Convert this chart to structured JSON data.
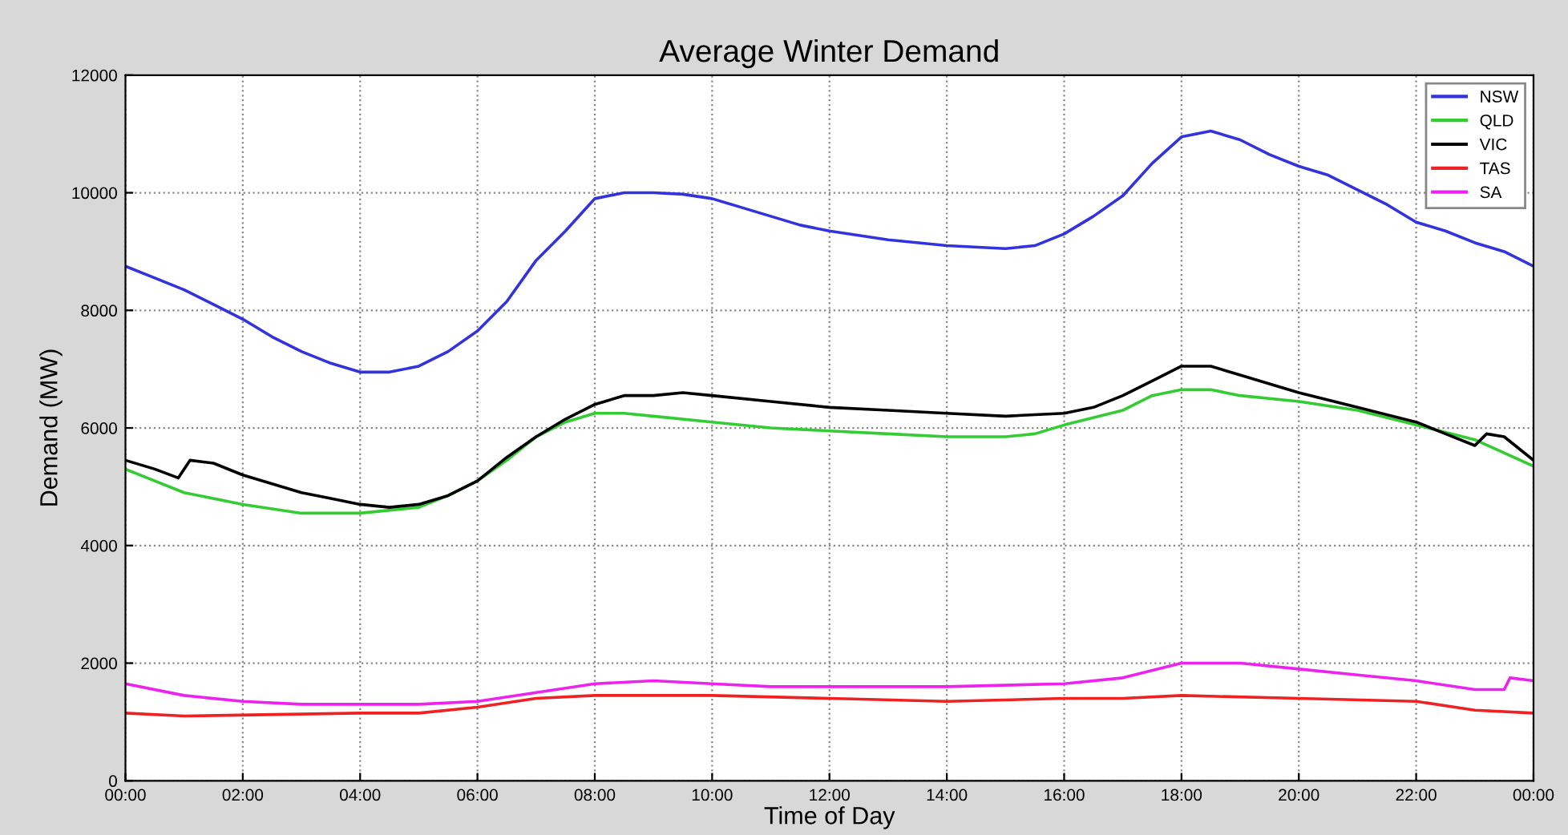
{
  "chart_data": {
    "type": "line",
    "title": "Average Winter Demand",
    "xlabel": "Time of Day",
    "ylabel": "Demand (MW)",
    "xlim": [
      0,
      24
    ],
    "ylim": [
      0,
      12000
    ],
    "xticks": [
      {
        "value": 0,
        "label": "00:00"
      },
      {
        "value": 2,
        "label": "02:00"
      },
      {
        "value": 4,
        "label": "04:00"
      },
      {
        "value": 6,
        "label": "06:00"
      },
      {
        "value": 8,
        "label": "08:00"
      },
      {
        "value": 10,
        "label": "10:00"
      },
      {
        "value": 12,
        "label": "12:00"
      },
      {
        "value": 14,
        "label": "14:00"
      },
      {
        "value": 16,
        "label": "16:00"
      },
      {
        "value": 18,
        "label": "18:00"
      },
      {
        "value": 20,
        "label": "20:00"
      },
      {
        "value": 22,
        "label": "22:00"
      },
      {
        "value": 24,
        "label": "00:00"
      }
    ],
    "yticks": [
      0,
      2000,
      4000,
      6000,
      8000,
      10000,
      12000
    ],
    "grid": true,
    "legend": "top right",
    "marker": "none",
    "line_style": "solid",
    "series": [
      {
        "name": "NSW",
        "color": "#3333dd",
        "x": [
          0,
          0.5,
          1,
          1.5,
          2,
          2.5,
          3,
          3.5,
          4,
          4.5,
          5,
          5.5,
          6,
          6.5,
          7,
          7.5,
          8,
          8.5,
          9,
          9.5,
          10,
          10.5,
          11,
          11.5,
          12,
          13,
          14,
          15,
          15.5,
          16,
          16.5,
          17,
          17.5,
          18,
          18.5,
          19,
          19.5,
          20,
          20.5,
          21,
          21.5,
          22,
          22.5,
          23,
          23.5,
          24
        ],
        "values": [
          8750,
          8550,
          8350,
          8100,
          7850,
          7550,
          7300,
          7100,
          6950,
          6950,
          7050,
          7300,
          7650,
          8150,
          8850,
          9350,
          9900,
          10000,
          10000,
          9975,
          9900,
          9750,
          9600,
          9450,
          9350,
          9200,
          9100,
          9050,
          9100,
          9300,
          9600,
          9950,
          10500,
          10950,
          11050,
          10900,
          10650,
          10450,
          10300,
          10050,
          9800,
          9500,
          9350,
          9150,
          9000,
          8750
        ]
      },
      {
        "name": "QLD",
        "color": "#33cc33",
        "x": [
          0,
          0.5,
          1,
          2,
          3,
          4,
          5,
          5.5,
          6,
          6.5,
          7,
          7.5,
          8,
          8.5,
          9,
          10,
          11,
          12,
          13,
          14,
          15,
          15.5,
          16,
          17,
          17.5,
          18,
          18.5,
          19,
          20,
          21,
          22,
          23,
          24
        ],
        "values": [
          5300,
          5100,
          4900,
          4700,
          4550,
          4550,
          4650,
          4850,
          5100,
          5450,
          5850,
          6100,
          6250,
          6250,
          6200,
          6100,
          6000,
          5950,
          5900,
          5850,
          5850,
          5900,
          6050,
          6300,
          6550,
          6650,
          6650,
          6550,
          6450,
          6300,
          6050,
          5800,
          5350
        ]
      },
      {
        "name": "VIC",
        "color": "#000000",
        "x": [
          0,
          0.5,
          0.9,
          1.1,
          1.5,
          2,
          2.5,
          3,
          3.5,
          4,
          4.5,
          5,
          5.5,
          6,
          6.5,
          7,
          7.5,
          8,
          8.5,
          9,
          9.5,
          10,
          11,
          12,
          13,
          14,
          15,
          16,
          16.5,
          17,
          17.5,
          18,
          18.5,
          19,
          19.5,
          20,
          21,
          22,
          22.5,
          23,
          23.2,
          23.5,
          24
        ],
        "values": [
          5450,
          5300,
          5150,
          5450,
          5400,
          5200,
          5050,
          4900,
          4800,
          4700,
          4650,
          4700,
          4850,
          5100,
          5500,
          5850,
          6150,
          6400,
          6550,
          6550,
          6600,
          6550,
          6450,
          6350,
          6300,
          6250,
          6200,
          6250,
          6350,
          6550,
          6800,
          7050,
          7050,
          6900,
          6750,
          6600,
          6350,
          6100,
          5900,
          5700,
          5900,
          5850,
          5450
        ]
      },
      {
        "name": "TAS",
        "color": "#ee2222",
        "x": [
          0,
          1,
          4,
          5,
          6,
          7,
          8,
          10,
          12,
          14,
          16,
          17,
          18,
          20,
          22,
          23,
          24
        ],
        "values": [
          1150,
          1100,
          1150,
          1150,
          1250,
          1400,
          1450,
          1450,
          1400,
          1350,
          1400,
          1400,
          1450,
          1400,
          1350,
          1200,
          1150
        ]
      },
      {
        "name": "SA",
        "color": "#ee22ee",
        "x": [
          0,
          1,
          2,
          3,
          4,
          5,
          6,
          7,
          8,
          9,
          10,
          11,
          12,
          14,
          16,
          17,
          18,
          18.5,
          19,
          20,
          21,
          22,
          23,
          23.5,
          23.6,
          24
        ],
        "values": [
          1650,
          1450,
          1350,
          1300,
          1300,
          1300,
          1350,
          1500,
          1650,
          1700,
          1650,
          1600,
          1600,
          1600,
          1650,
          1750,
          2000,
          2000,
          2000,
          1900,
          1800,
          1700,
          1550,
          1550,
          1750,
          1700
        ]
      }
    ]
  }
}
